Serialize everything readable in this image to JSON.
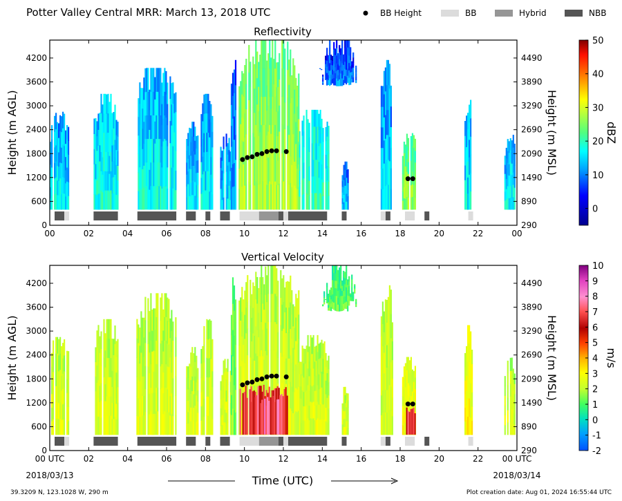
{
  "figure": {
    "title": "Potter Valley Central MRR:  March 13, 2018 UTC",
    "location": "39.3209 N, 123.1028 W, 290 m",
    "creation_date": "Plot creation date: Aug 01, 2024 16:55:44 UTC",
    "time_label": "Time (UTC)",
    "start_date": "2018/03/13",
    "end_date": "2018/03/14"
  },
  "legend": {
    "items": [
      {
        "label": "BB Height",
        "kind": "marker",
        "color": "#000000"
      },
      {
        "label": "BB",
        "kind": "patch",
        "color": "#dcdcdc"
      },
      {
        "label": "Hybrid",
        "kind": "patch",
        "color": "#969696"
      },
      {
        "label": "NBB",
        "kind": "patch",
        "color": "#555555"
      }
    ]
  },
  "chart_data": [
    {
      "type": "heatmap",
      "title": "Reflectivity",
      "xlabel": "",
      "ylabel": "Height (m AGL)",
      "ylabel_right": "Height (m MSL)",
      "colorbar_label": "dBZ",
      "x_ticks": [
        "00",
        "02",
        "04",
        "06",
        "08",
        "10",
        "12",
        "14",
        "16",
        "18",
        "20",
        "22",
        "00"
      ],
      "y_ticks": [
        0,
        600,
        1200,
        1800,
        2400,
        3000,
        3600,
        4200
      ],
      "y_ticks_right": [
        290,
        890,
        1490,
        2090,
        2690,
        3290,
        3890,
        4490
      ],
      "ylim": [
        0,
        4650
      ],
      "xlim_hours": [
        0,
        24
      ],
      "colorbar_range": [
        -5,
        50
      ],
      "colorbar_ticks": [
        0,
        10,
        20,
        30,
        40,
        50
      ],
      "bb_height_points": [
        [
          9.9,
          1650
        ],
        [
          10.15,
          1700
        ],
        [
          10.4,
          1720
        ],
        [
          10.65,
          1780
        ],
        [
          10.9,
          1800
        ],
        [
          11.15,
          1850
        ],
        [
          11.4,
          1870
        ],
        [
          11.65,
          1870
        ],
        [
          12.15,
          1850
        ],
        [
          18.4,
          1170
        ],
        [
          18.65,
          1170
        ]
      ],
      "bb_classification": [
        {
          "start": 0.25,
          "end": 0.75,
          "class": "NBB"
        },
        {
          "start": 0.75,
          "end": 1.0,
          "class": "BB"
        },
        {
          "start": 2.25,
          "end": 3.5,
          "class": "NBB"
        },
        {
          "start": 4.5,
          "end": 6.5,
          "class": "NBB"
        },
        {
          "start": 7.0,
          "end": 7.5,
          "class": "NBB"
        },
        {
          "start": 8.0,
          "end": 8.25,
          "class": "NBB"
        },
        {
          "start": 8.75,
          "end": 9.25,
          "class": "NBB"
        },
        {
          "start": 9.75,
          "end": 10.75,
          "class": "BB"
        },
        {
          "start": 10.75,
          "end": 11.75,
          "class": "Hybrid"
        },
        {
          "start": 11.75,
          "end": 12.0,
          "class": "NBB"
        },
        {
          "start": 12.0,
          "end": 12.25,
          "class": "BB"
        },
        {
          "start": 12.25,
          "end": 14.25,
          "class": "NBB"
        },
        {
          "start": 15.0,
          "end": 15.25,
          "class": "NBB"
        },
        {
          "start": 17.0,
          "end": 17.25,
          "class": "BB"
        },
        {
          "start": 17.25,
          "end": 17.5,
          "class": "NBB"
        },
        {
          "start": 18.25,
          "end": 18.75,
          "class": "BB"
        },
        {
          "start": 19.25,
          "end": 19.5,
          "class": "NBB"
        },
        {
          "start": 21.5,
          "end": 21.75,
          "class": "BB"
        }
      ],
      "echo_columns": [
        {
          "start": 0.0,
          "end": 0.95,
          "top": 2850,
          "value": 12
        },
        {
          "start": 2.25,
          "end": 3.5,
          "top": 3300,
          "value": 14
        },
        {
          "start": 4.45,
          "end": 6.5,
          "top": 3950,
          "value": 13
        },
        {
          "start": 7.0,
          "end": 7.6,
          "top": 2600,
          "value": 12
        },
        {
          "start": 7.75,
          "end": 8.35,
          "top": 3300,
          "value": 12
        },
        {
          "start": 8.75,
          "end": 9.3,
          "top": 2300,
          "value": 11
        },
        {
          "start": 9.3,
          "end": 9.55,
          "top": 4350,
          "value": 9
        },
        {
          "start": 9.7,
          "end": 12.8,
          "top": 4650,
          "value": 24
        },
        {
          "start": 12.8,
          "end": 14.3,
          "top": 2900,
          "value": 16
        },
        {
          "start": 15.0,
          "end": 15.3,
          "top": 1600,
          "value": 10
        },
        {
          "start": 17.0,
          "end": 17.6,
          "top": 4150,
          "value": 11
        },
        {
          "start": 18.1,
          "end": 18.8,
          "top": 2350,
          "value": 22
        },
        {
          "start": 21.3,
          "end": 21.7,
          "top": 3150,
          "value": 12
        },
        {
          "start": 23.35,
          "end": 23.9,
          "top": 2350,
          "value": 13
        }
      ],
      "echo_aloft": [
        {
          "start": 13.85,
          "end": 15.75,
          "bottom": 3500,
          "top": 4650,
          "value": 6
        }
      ]
    },
    {
      "type": "heatmap",
      "title": "Vertical Velocity",
      "xlabel": "Time (UTC)",
      "ylabel": "Height (m AGL)",
      "ylabel_right": "Height (m MSL)",
      "colorbar_label": "m/s",
      "x_ticks": [
        "00 UTC",
        "02",
        "04",
        "06",
        "08",
        "10",
        "12",
        "14",
        "16",
        "18",
        "20",
        "22",
        "00 UTC"
      ],
      "y_ticks": [
        0,
        600,
        1200,
        1800,
        2400,
        3000,
        3600,
        4200
      ],
      "y_ticks_right": [
        290,
        890,
        1490,
        2090,
        2690,
        3290,
        3890,
        4490
      ],
      "ylim": [
        0,
        4650
      ],
      "xlim_hours": [
        0,
        24
      ],
      "colorbar_range": [
        -2,
        10
      ],
      "colorbar_ticks": [
        -2,
        -1,
        0,
        1,
        2,
        3,
        4,
        5,
        6,
        7,
        8,
        9,
        10
      ],
      "bb_height_points": [
        [
          9.9,
          1650
        ],
        [
          10.15,
          1700
        ],
        [
          10.4,
          1720
        ],
        [
          10.65,
          1780
        ],
        [
          10.9,
          1800
        ],
        [
          11.15,
          1850
        ],
        [
          11.4,
          1870
        ],
        [
          11.65,
          1870
        ],
        [
          12.15,
          1850
        ],
        [
          18.4,
          1170
        ],
        [
          18.65,
          1170
        ]
      ],
      "echo_columns": [
        {
          "start": 0.0,
          "end": 0.95,
          "top": 2850,
          "value": 2.5
        },
        {
          "start": 2.25,
          "end": 3.5,
          "top": 3300,
          "value": 2.5
        },
        {
          "start": 4.45,
          "end": 6.5,
          "top": 3950,
          "value": 2.5
        },
        {
          "start": 7.0,
          "end": 7.6,
          "top": 2600,
          "value": 2.5
        },
        {
          "start": 7.75,
          "end": 8.35,
          "top": 3300,
          "value": 2.5
        },
        {
          "start": 8.75,
          "end": 9.3,
          "top": 2300,
          "value": 2.5
        },
        {
          "start": 9.3,
          "end": 9.55,
          "top": 4350,
          "value": 1.5
        },
        {
          "start": 9.7,
          "end": 12.8,
          "top": 4650,
          "value": 2.5
        },
        {
          "start": 12.8,
          "end": 14.3,
          "top": 2900,
          "value": 2.5
        },
        {
          "start": 15.0,
          "end": 15.3,
          "top": 1600,
          "value": 2.5
        },
        {
          "start": 17.0,
          "end": 17.6,
          "top": 4150,
          "value": 2.5
        },
        {
          "start": 18.1,
          "end": 18.8,
          "top": 2350,
          "value": 3
        },
        {
          "start": 21.3,
          "end": 21.7,
          "top": 3150,
          "value": 3
        },
        {
          "start": 23.35,
          "end": 23.9,
          "top": 2350,
          "value": 2.5
        }
      ],
      "echo_aloft": [
        {
          "start": 13.85,
          "end": 15.75,
          "bottom": 3500,
          "top": 4650,
          "value": 1.2
        }
      ],
      "fall_cores": [
        {
          "start": 9.75,
          "end": 12.2,
          "top": 1650,
          "value": 6.5
        },
        {
          "start": 10.3,
          "end": 11.8,
          "top": 1400,
          "value": 7.5
        },
        {
          "start": 18.3,
          "end": 18.75,
          "top": 1100,
          "value": 7
        }
      ]
    }
  ]
}
